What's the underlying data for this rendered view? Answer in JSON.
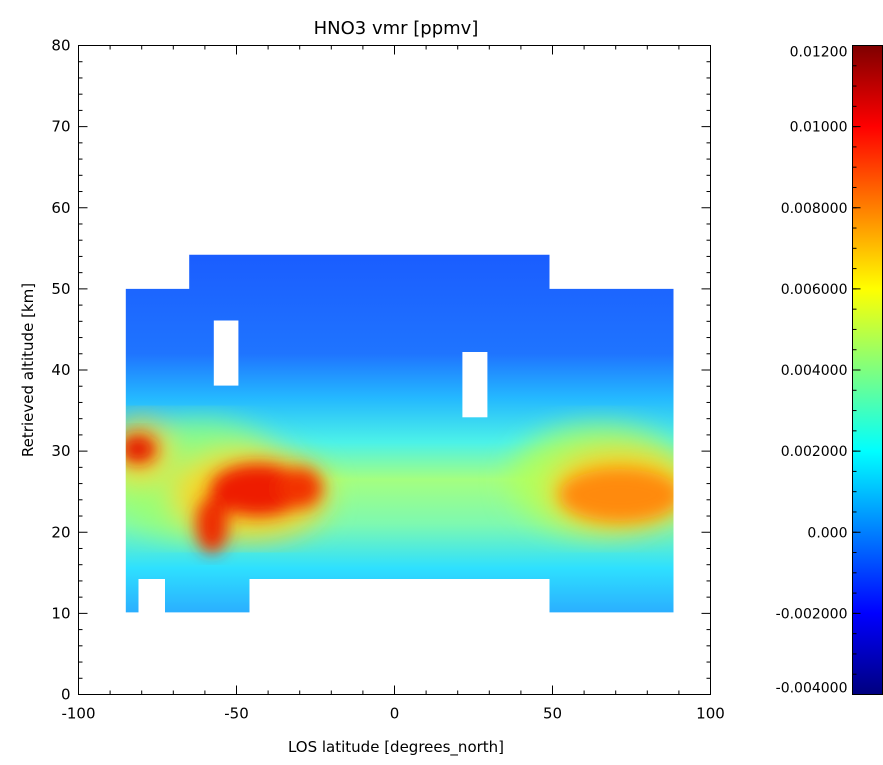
{
  "chart_data": {
    "type": "heatmap",
    "title": "HNO3 vmr [ppmv]",
    "xlabel": "LOS latitude [degrees_north]",
    "ylabel": "Retrieved altitude [km]",
    "xlim": [
      -100,
      100
    ],
    "ylim": [
      0,
      80
    ],
    "x_ticks": [
      "-100",
      "-50",
      "0",
      "50",
      "100"
    ],
    "y_ticks": [
      "0",
      "10",
      "20",
      "30",
      "40",
      "50",
      "60",
      "70",
      "80"
    ],
    "colorbar": {
      "range": [
        -0.004,
        0.012
      ],
      "ticks": [
        {
          "value": -0.004,
          "label": "-0.004000"
        },
        {
          "value": -0.002,
          "label": "-0.002000"
        },
        {
          "value": 0.0,
          "label": "0.000"
        },
        {
          "value": 0.002,
          "label": "0.002000"
        },
        {
          "value": 0.004,
          "label": "0.004000"
        },
        {
          "value": 0.006,
          "label": "0.006000"
        },
        {
          "value": 0.008,
          "label": "0.008000"
        },
        {
          "value": 0.01,
          "label": "0.01000"
        },
        {
          "value": 0.012,
          "label": "0.01200"
        }
      ],
      "colormap": "rainbow (blue to red)",
      "colormap_stops": [
        "#00007f",
        "#0000ff",
        "#007fff",
        "#00ffff",
        "#7fff7f",
        "#ffff00",
        "#ff7f00",
        "#ff0000",
        "#7f0000"
      ]
    },
    "data_regions": [
      {
        "x": [
          -86,
          -66
        ],
        "y": [
          10,
          50
        ]
      },
      {
        "x": [
          -66,
          50
        ],
        "y": [
          14,
          54
        ]
      },
      {
        "x": [
          -66,
          -47
        ],
        "y": [
          10,
          14
        ]
      },
      {
        "x": [
          50,
          90
        ],
        "y": [
          10,
          50
        ]
      }
    ],
    "gaps": [
      {
        "x": [
          -82,
          -74
        ],
        "y": [
          10,
          14
        ]
      },
      {
        "x": [
          -57,
          -50
        ],
        "y": [
          38,
          46
        ]
      },
      {
        "x": [
          22,
          29
        ],
        "y": [
          34,
          42
        ]
      }
    ],
    "features": [
      {
        "name": "upper layer",
        "altitude_range": [
          40,
          54
        ],
        "value": 0.0005
      },
      {
        "name": "high band",
        "x": [
          -86,
          -79
        ],
        "y": [
          28,
          33
        ],
        "value": 0.0105
      },
      {
        "name": "high band",
        "x": [
          -64,
          -25
        ],
        "y": [
          18,
          29
        ],
        "value": 0.0105
      },
      {
        "name": "high band",
        "x": [
          50,
          90
        ],
        "y": [
          21,
          29
        ],
        "value": 0.008
      }
    ]
  }
}
